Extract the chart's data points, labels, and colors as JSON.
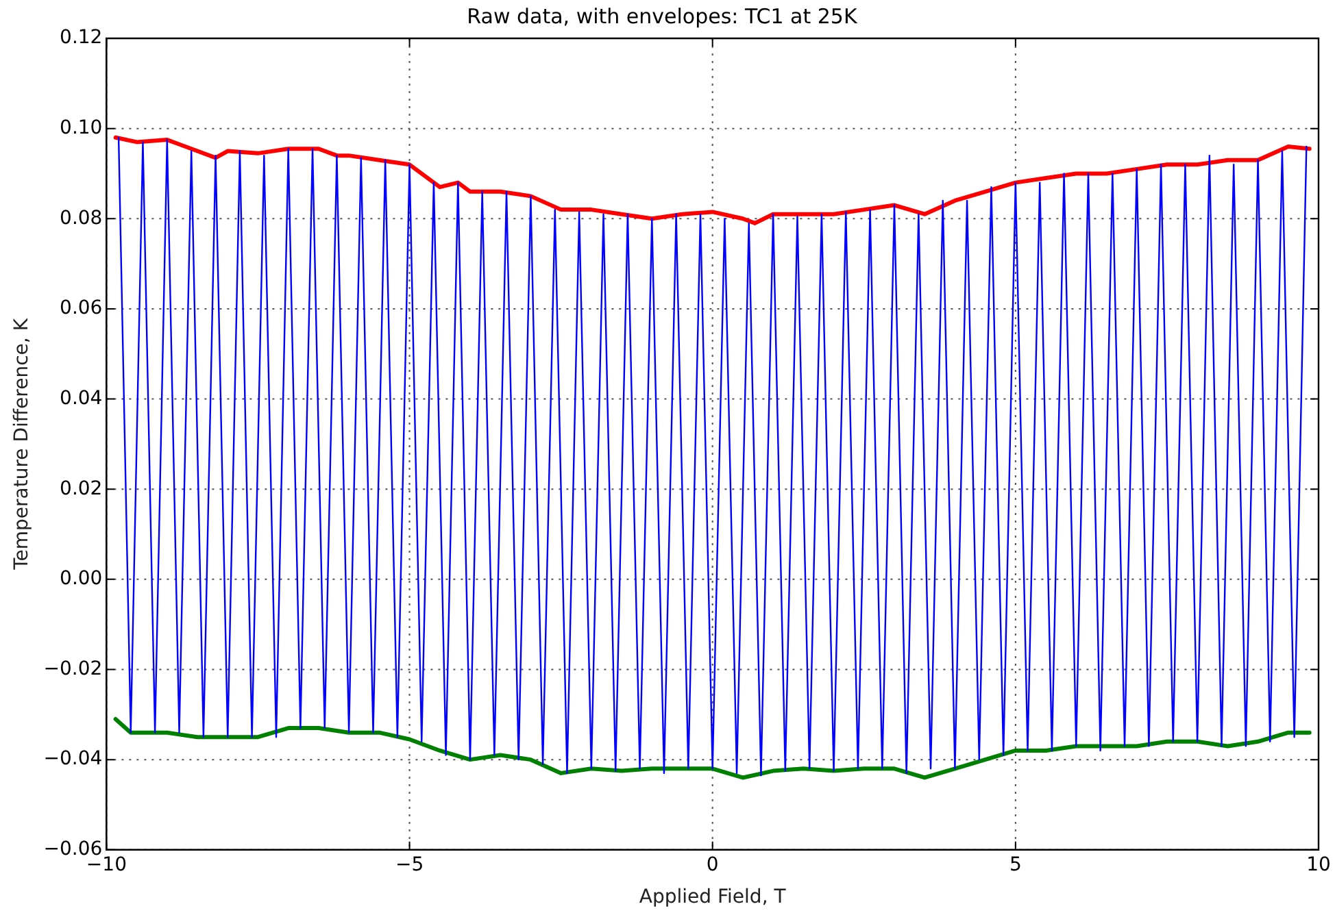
{
  "chart_data": {
    "type": "line",
    "title": "Raw data, with envelopes: TC1 at 25K",
    "xlabel": "Applied Field, T",
    "ylabel": "Temperature Difference, K",
    "xlim": [
      -10,
      10
    ],
    "xticks": [
      {
        "value": -10,
        "label": "−10"
      },
      {
        "value": -5,
        "label": "−5"
      },
      0,
      5,
      10
    ],
    "ylim": [
      -0.06,
      0.12
    ],
    "yticks": [
      {
        "value": -0.06,
        "label": "−0.06"
      },
      {
        "value": -0.04,
        "label": "−0.04"
      },
      {
        "value": -0.02,
        "label": "−0.02"
      },
      {
        "value": 0,
        "label": "0.00"
      },
      {
        "value": 0.02,
        "label": "0.02"
      },
      {
        "value": 0.04,
        "label": "0.04"
      },
      {
        "value": 0.06,
        "label": "0.06"
      },
      {
        "value": 0.08,
        "label": "0.08"
      },
      {
        "value": 0.1,
        "label": "0.10"
      },
      {
        "value": 0.12,
        "label": "0.12"
      }
    ],
    "grid": true,
    "line_style": "solid",
    "marker": "none",
    "series": [
      {
        "color": "#0000ff",
        "x": [
          -9.8,
          -9.6,
          -9.4,
          -9.2,
          -9.0,
          -8.8,
          -8.6,
          -8.4,
          -8.2,
          -8.0,
          -7.8,
          -7.6,
          -7.4,
          -7.2,
          -7.0,
          -6.8,
          -6.6,
          -6.4,
          -6.2,
          -6.0,
          -5.8,
          -5.6,
          -5.4,
          -5.2,
          -5.0,
          -4.8,
          -4.6,
          -4.4,
          -4.2,
          -4.0,
          -3.8,
          -3.6,
          -3.4,
          -3.2,
          -3.0,
          -2.8,
          -2.6,
          -2.4,
          -2.2,
          -2.0,
          -1.8,
          -1.6,
          -1.4,
          -1.2,
          -1.0,
          -0.8,
          -0.6,
          -0.4,
          -0.2,
          0.0,
          0.2,
          0.4,
          0.6,
          0.8,
          1.0,
          1.2,
          1.4,
          1.6,
          1.8,
          2.0,
          2.2,
          2.4,
          2.6,
          2.8,
          3.0,
          3.2,
          3.4,
          3.6,
          3.8,
          4.0,
          4.2,
          4.4,
          4.6,
          4.8,
          5.0,
          5.2,
          5.4,
          5.6,
          5.8,
          6.0,
          6.2,
          6.4,
          6.6,
          6.8,
          7.0,
          7.2,
          7.4,
          7.6,
          7.8,
          8.0,
          8.2,
          8.4,
          8.6,
          8.8,
          9.0,
          9.2,
          9.4,
          9.6,
          9.8
        ],
        "values": [
          0.098,
          -0.034,
          0.097,
          -0.034,
          0.0975,
          -0.034,
          0.095,
          -0.035,
          0.094,
          -0.035,
          0.095,
          -0.035,
          0.094,
          -0.035,
          0.0955,
          -0.033,
          0.0955,
          -0.033,
          0.094,
          -0.034,
          0.0935,
          -0.034,
          0.093,
          -0.035,
          0.092,
          -0.036,
          0.088,
          -0.039,
          0.088,
          -0.04,
          0.086,
          -0.039,
          0.086,
          -0.04,
          0.085,
          -0.041,
          0.082,
          -0.043,
          0.0815,
          -0.042,
          0.081,
          -0.0425,
          0.081,
          -0.042,
          0.08,
          -0.043,
          0.081,
          -0.042,
          0.081,
          -0.042,
          0.08,
          -0.043,
          0.079,
          -0.0435,
          0.081,
          -0.0425,
          0.0805,
          -0.042,
          0.081,
          -0.0425,
          0.0815,
          -0.042,
          0.082,
          -0.042,
          0.083,
          -0.043,
          0.081,
          -0.042,
          0.084,
          -0.042,
          0.084,
          -0.04,
          0.087,
          -0.039,
          0.088,
          -0.038,
          0.088,
          -0.038,
          0.09,
          -0.037,
          0.09,
          -0.038,
          0.09,
          -0.037,
          0.091,
          -0.037,
          0.092,
          -0.036,
          0.092,
          -0.036,
          0.094,
          -0.037,
          0.092,
          -0.037,
          0.093,
          -0.036,
          0.095,
          -0.035,
          0.096
        ]
      },
      {
        "color": "#ff0000",
        "x": [
          -9.85,
          -9.5,
          -9.0,
          -8.5,
          -8.2,
          -8.0,
          -7.5,
          -7.0,
          -6.5,
          -6.2,
          -6.0,
          -5.5,
          -5.0,
          -4.5,
          -4.2,
          -4.0,
          -3.5,
          -3.0,
          -2.5,
          -2.0,
          -1.5,
          -1.0,
          -0.5,
          0.0,
          0.5,
          0.7,
          1.0,
          1.5,
          2.0,
          2.5,
          3.0,
          3.5,
          4.0,
          4.5,
          5.0,
          5.5,
          6.0,
          6.5,
          7.0,
          7.5,
          8.0,
          8.5,
          9.0,
          9.5,
          9.85
        ],
        "values": [
          0.098,
          0.097,
          0.0975,
          0.095,
          0.0935,
          0.095,
          0.0945,
          0.0955,
          0.0955,
          0.094,
          0.094,
          0.093,
          0.092,
          0.087,
          0.088,
          0.086,
          0.086,
          0.085,
          0.082,
          0.082,
          0.081,
          0.08,
          0.081,
          0.0815,
          0.08,
          0.079,
          0.081,
          0.081,
          0.081,
          0.082,
          0.083,
          0.081,
          0.084,
          0.086,
          0.088,
          0.089,
          0.09,
          0.09,
          0.091,
          0.092,
          0.092,
          0.093,
          0.093,
          0.096,
          0.0955
        ]
      },
      {
        "color": "#008000",
        "x": [
          -9.85,
          -9.6,
          -9.0,
          -8.5,
          -8.0,
          -7.5,
          -7.0,
          -6.5,
          -6.0,
          -5.5,
          -5.0,
          -4.5,
          -4.0,
          -3.5,
          -3.0,
          -2.5,
          -2.0,
          -1.5,
          -1.0,
          -0.5,
          0.0,
          0.5,
          1.0,
          1.5,
          2.0,
          2.5,
          3.0,
          3.5,
          4.0,
          4.5,
          5.0,
          5.5,
          6.0,
          6.5,
          7.0,
          7.5,
          8.0,
          8.5,
          9.0,
          9.5,
          9.85
        ],
        "values": [
          -0.031,
          -0.034,
          -0.034,
          -0.035,
          -0.035,
          -0.035,
          -0.033,
          -0.033,
          -0.034,
          -0.034,
          -0.0355,
          -0.038,
          -0.04,
          -0.039,
          -0.04,
          -0.043,
          -0.042,
          -0.0425,
          -0.042,
          -0.042,
          -0.042,
          -0.044,
          -0.0425,
          -0.042,
          -0.0425,
          -0.042,
          -0.042,
          -0.044,
          -0.042,
          -0.04,
          -0.038,
          -0.038,
          -0.037,
          -0.037,
          -0.037,
          -0.036,
          -0.036,
          -0.037,
          -0.036,
          -0.034,
          -0.034
        ]
      }
    ]
  }
}
